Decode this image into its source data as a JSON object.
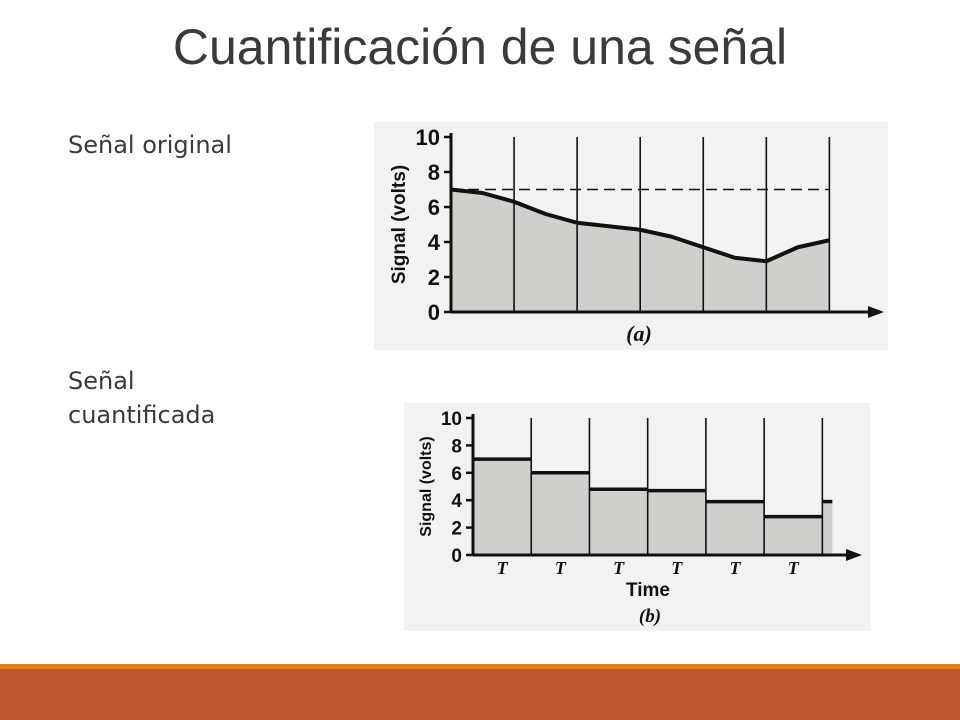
{
  "slide": {
    "title": "Cuantificación de una señal",
    "label_original": "Señal original",
    "label_quantized": "Señal cuantificada",
    "colors": {
      "title": "#3a3a3a",
      "accent_orange": "#e37f1b",
      "accent_rust": "#bd582c"
    }
  },
  "chart_data": [
    {
      "type": "area",
      "ylabel": "Signal (volts)",
      "xlabel": "",
      "caption": "(a)",
      "yticks": [
        0,
        2,
        4,
        6,
        8,
        10
      ],
      "ylim": [
        0,
        10
      ],
      "xlim": [
        0,
        6.2
      ],
      "sample_lines_x": [
        1,
        2,
        3,
        4,
        5,
        6
      ],
      "threshold_y": 7,
      "series": [
        {
          "x": [
            0,
            0.5,
            1,
            1.5,
            2,
            2.5,
            3,
            3.5,
            4,
            4.5,
            5,
            5.5,
            6
          ],
          "y": [
            7.0,
            6.8,
            6.3,
            5.6,
            5.1,
            4.9,
            4.7,
            4.3,
            3.7,
            3.1,
            2.9,
            3.7,
            4.1
          ]
        }
      ]
    },
    {
      "type": "area",
      "ylabel": "Signal (volts)",
      "xlabel": "Time",
      "caption": "(b)",
      "yticks": [
        0,
        2,
        4,
        6,
        8,
        10
      ],
      "ylim": [
        0,
        10
      ],
      "xlim": [
        0,
        6.2
      ],
      "step_label": "T",
      "sample_lines_x": [
        1,
        2,
        3,
        4,
        5,
        6
      ],
      "series": [
        {
          "x": [
            0,
            1,
            2,
            3,
            4,
            5
          ],
          "y": [
            7,
            6,
            4.8,
            4.7,
            3.9,
            2.8
          ]
        }
      ],
      "tail_value": 3.9
    }
  ]
}
